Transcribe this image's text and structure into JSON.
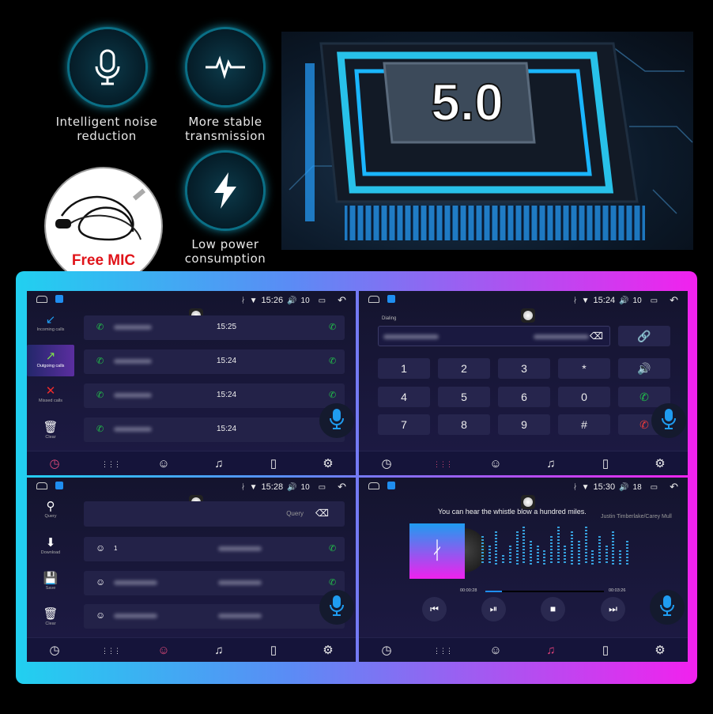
{
  "features": [
    {
      "icon": "microphone-icon",
      "label": "Intelligent noise reduction"
    },
    {
      "icon": "waveform-icon",
      "label": "More stable transmission"
    },
    {
      "icon": "lightning-icon",
      "label": "Low power consumption"
    }
  ],
  "mic_promo": {
    "label": "Free MIC"
  },
  "chip": {
    "version": "5.0"
  },
  "colors": {
    "frame_start": "#21d0f0",
    "frame_end": "#f221ee",
    "accent_blue": "#1f9cf0",
    "call_green": "#21c14a",
    "hangup_red": "#ef3b3b"
  },
  "screens": [
    {
      "status": {
        "time": "15:26",
        "volume": "10"
      },
      "sidebar": [
        {
          "label": "Incoming calls"
        },
        {
          "label": "Outgoing calls"
        },
        {
          "label": "Missed calls"
        },
        {
          "label": "Clear"
        }
      ],
      "calls": [
        {
          "time": "15:25"
        },
        {
          "time": "15:24"
        },
        {
          "time": "15:24"
        },
        {
          "time": "15:24"
        }
      ]
    },
    {
      "status": {
        "time": "15:24",
        "volume": "10"
      },
      "dialing_label": "Dialing",
      "keys": [
        "1",
        "2",
        "3",
        "*",
        "4",
        "5",
        "6",
        "0",
        "7",
        "8",
        "9",
        "#"
      ]
    },
    {
      "status": {
        "time": "15:28",
        "volume": "10"
      },
      "sidebar": [
        {
          "label": "Query"
        },
        {
          "label": "Download"
        },
        {
          "label": "Save"
        },
        {
          "label": "Clear"
        }
      ],
      "query_placeholder": "Query",
      "contacts": [
        {
          "name": "1"
        },
        {},
        {}
      ]
    },
    {
      "status": {
        "time": "15:30",
        "volume": "18"
      },
      "song_title": "You can hear the whistle blow a hundred miles.",
      "artist": "Justin Timberlake/Carey Mull",
      "elapsed": "00:00:28",
      "duration": "00:03:26",
      "progress": 0.14,
      "equalizer_levels": [
        6,
        4,
        7,
        2,
        4,
        7,
        8,
        5,
        4,
        3,
        6,
        8,
        4,
        7,
        5,
        8,
        3,
        6,
        4,
        7,
        3,
        5
      ]
    }
  ]
}
